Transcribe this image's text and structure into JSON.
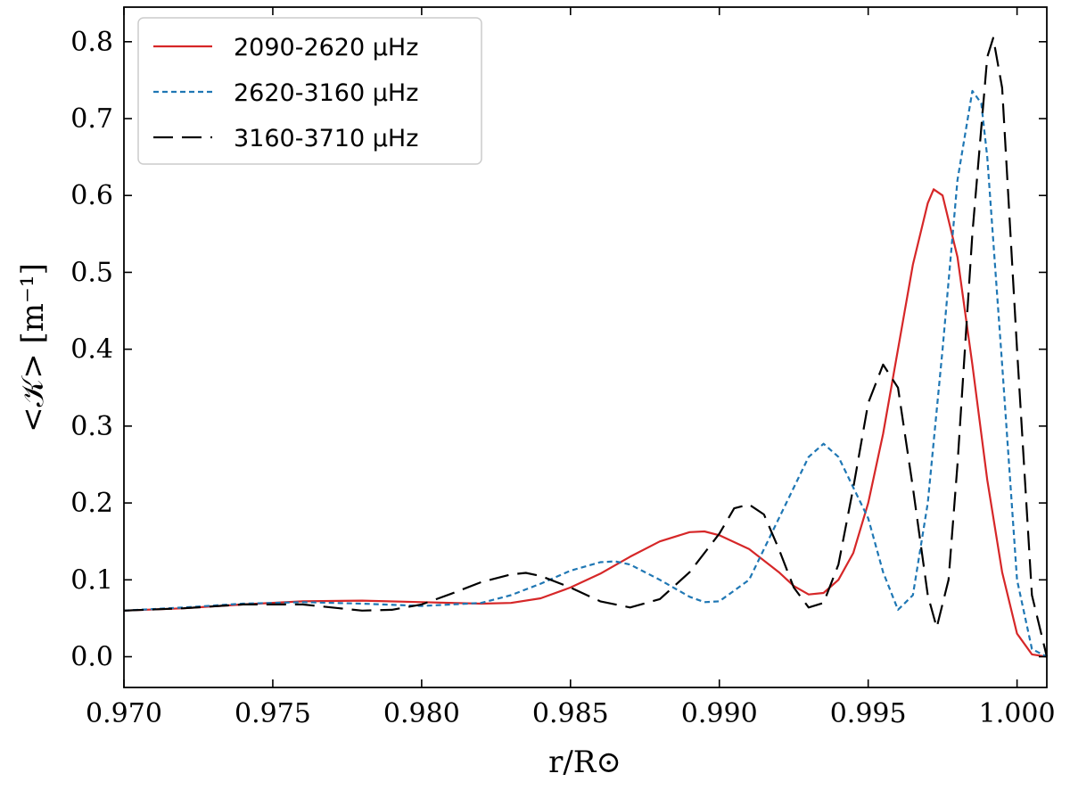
{
  "chart_data": {
    "type": "line",
    "xlabel": "r/R⊙",
    "ylabel": "<𝒦> [m⁻¹]",
    "xlim": [
      0.97,
      1.001
    ],
    "ylim": [
      -0.04,
      0.845
    ],
    "xticks": [
      "0.970",
      "0.975",
      "0.980",
      "0.985",
      "0.990",
      "0.995",
      "1.000"
    ],
    "yticks": [
      "0.0",
      "0.1",
      "0.2",
      "0.3",
      "0.4",
      "0.5",
      "0.6",
      "0.7",
      "0.8"
    ],
    "grid": false,
    "legend_position": "top-left",
    "series": [
      {
        "name": "2090-2620 μHz",
        "color": "#d62728",
        "dash": "solid",
        "points": [
          [
            0.97,
            0.06
          ],
          [
            0.972,
            0.063
          ],
          [
            0.974,
            0.068
          ],
          [
            0.976,
            0.072
          ],
          [
            0.978,
            0.073
          ],
          [
            0.98,
            0.071
          ],
          [
            0.982,
            0.069
          ],
          [
            0.983,
            0.07
          ],
          [
            0.984,
            0.076
          ],
          [
            0.985,
            0.09
          ],
          [
            0.986,
            0.108
          ],
          [
            0.987,
            0.13
          ],
          [
            0.988,
            0.15
          ],
          [
            0.989,
            0.162
          ],
          [
            0.9895,
            0.163
          ],
          [
            0.99,
            0.158
          ],
          [
            0.991,
            0.14
          ],
          [
            0.992,
            0.11
          ],
          [
            0.9925,
            0.092
          ],
          [
            0.993,
            0.081
          ],
          [
            0.9935,
            0.083
          ],
          [
            0.994,
            0.1
          ],
          [
            0.9945,
            0.135
          ],
          [
            0.995,
            0.2
          ],
          [
            0.9955,
            0.29
          ],
          [
            0.996,
            0.4
          ],
          [
            0.9965,
            0.51
          ],
          [
            0.997,
            0.59
          ],
          [
            0.9972,
            0.608
          ],
          [
            0.9975,
            0.6
          ],
          [
            0.998,
            0.52
          ],
          [
            0.9985,
            0.38
          ],
          [
            0.999,
            0.23
          ],
          [
            0.9995,
            0.11
          ],
          [
            1.0,
            0.03
          ],
          [
            1.0005,
            0.003
          ],
          [
            1.001,
            0.0
          ]
        ]
      },
      {
        "name": "2620-3160 μHz",
        "color": "#1f77b4",
        "dash": "short",
        "points": [
          [
            0.97,
            0.06
          ],
          [
            0.972,
            0.064
          ],
          [
            0.974,
            0.069
          ],
          [
            0.976,
            0.071
          ],
          [
            0.978,
            0.069
          ],
          [
            0.98,
            0.066
          ],
          [
            0.982,
            0.07
          ],
          [
            0.983,
            0.08
          ],
          [
            0.984,
            0.095
          ],
          [
            0.985,
            0.112
          ],
          [
            0.986,
            0.123
          ],
          [
            0.9865,
            0.124
          ],
          [
            0.987,
            0.12
          ],
          [
            0.988,
            0.1
          ],
          [
            0.989,
            0.078
          ],
          [
            0.9895,
            0.071
          ],
          [
            0.99,
            0.072
          ],
          [
            0.991,
            0.1
          ],
          [
            0.992,
            0.18
          ],
          [
            0.993,
            0.26
          ],
          [
            0.9935,
            0.277
          ],
          [
            0.994,
            0.26
          ],
          [
            0.995,
            0.18
          ],
          [
            0.9955,
            0.11
          ],
          [
            0.996,
            0.061
          ],
          [
            0.9965,
            0.08
          ],
          [
            0.997,
            0.2
          ],
          [
            0.9975,
            0.4
          ],
          [
            0.998,
            0.62
          ],
          [
            0.9985,
            0.736
          ],
          [
            0.9988,
            0.72
          ],
          [
            0.999,
            0.65
          ],
          [
            0.9995,
            0.38
          ],
          [
            1.0,
            0.1
          ],
          [
            1.0005,
            0.01
          ],
          [
            1.001,
            0.0
          ]
        ]
      },
      {
        "name": "3160-3710 μHz",
        "color": "#000000",
        "dash": "long",
        "points": [
          [
            0.97,
            0.06
          ],
          [
            0.972,
            0.063
          ],
          [
            0.974,
            0.068
          ],
          [
            0.976,
            0.068
          ],
          [
            0.978,
            0.06
          ],
          [
            0.979,
            0.061
          ],
          [
            0.98,
            0.068
          ],
          [
            0.981,
            0.082
          ],
          [
            0.982,
            0.097
          ],
          [
            0.983,
            0.107
          ],
          [
            0.9835,
            0.109
          ],
          [
            0.984,
            0.105
          ],
          [
            0.985,
            0.09
          ],
          [
            0.986,
            0.072
          ],
          [
            0.987,
            0.064
          ],
          [
            0.988,
            0.075
          ],
          [
            0.989,
            0.11
          ],
          [
            0.99,
            0.16
          ],
          [
            0.9905,
            0.193
          ],
          [
            0.991,
            0.198
          ],
          [
            0.9915,
            0.185
          ],
          [
            0.992,
            0.14
          ],
          [
            0.9925,
            0.09
          ],
          [
            0.993,
            0.064
          ],
          [
            0.9935,
            0.07
          ],
          [
            0.994,
            0.12
          ],
          [
            0.9945,
            0.22
          ],
          [
            0.995,
            0.33
          ],
          [
            0.9955,
            0.38
          ],
          [
            0.996,
            0.35
          ],
          [
            0.9965,
            0.22
          ],
          [
            0.997,
            0.08
          ],
          [
            0.9973,
            0.038
          ],
          [
            0.9977,
            0.1
          ],
          [
            0.998,
            0.25
          ],
          [
            0.9985,
            0.55
          ],
          [
            0.999,
            0.78
          ],
          [
            0.9992,
            0.805
          ],
          [
            0.9995,
            0.74
          ],
          [
            1.0,
            0.4
          ],
          [
            1.0005,
            0.08
          ],
          [
            1.001,
            0.0
          ]
        ]
      }
    ]
  }
}
